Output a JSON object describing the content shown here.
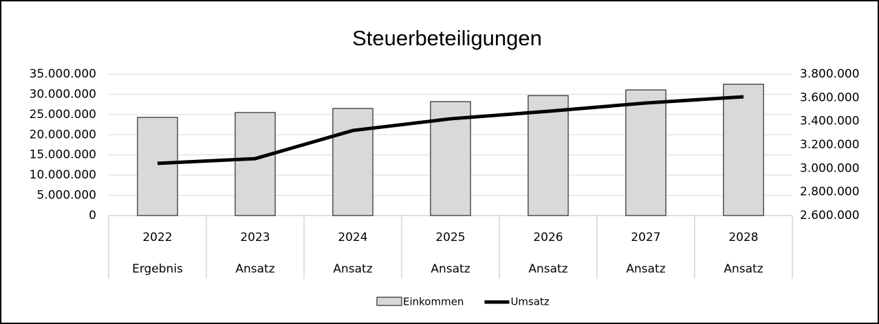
{
  "chart_data": {
    "type": "bar-line",
    "title": "Steuerbeteiligungen",
    "categories": [
      "2022",
      "2023",
      "2024",
      "2025",
      "2026",
      "2027",
      "2028"
    ],
    "sub_categories": [
      "Ergebnis",
      "Ansatz",
      "Ansatz",
      "Ansatz",
      "Ansatz",
      "Ansatz",
      "Ansatz"
    ],
    "series": [
      {
        "name": "Einkommen",
        "type": "bar",
        "color": "#d9d9d9",
        "values": [
          24300000,
          25500000,
          26500000,
          28200000,
          29700000,
          31100000,
          32500000
        ]
      },
      {
        "name": "Umsatz",
        "type": "line",
        "axis": "y2",
        "color": "#000000",
        "values": [
          3043000,
          3083000,
          3322000,
          3421000,
          3485000,
          3555000,
          3608000
        ]
      }
    ],
    "ylim": [
      0,
      35000000
    ],
    "yticks": [
      0,
      {
        "value": 5000000,
        "label": "5.000.000"
      },
      {
        "value": 10000000,
        "label": "10.000.000"
      },
      {
        "value": 15000000,
        "label": "15.000.000"
      },
      {
        "value": 20000000,
        "label": "20.000.000"
      },
      {
        "value": 25000000,
        "label": "25.000.000"
      },
      {
        "value": 30000000,
        "label": "30.000.000"
      },
      {
        "value": 35000000,
        "label": "35.000.000"
      }
    ],
    "y2lim": [
      2600000,
      3800000
    ],
    "y2ticks": [
      {
        "value": 2600000,
        "label": "2.600.000"
      },
      {
        "value": 2800000,
        "label": "2.800.000"
      },
      {
        "value": 3000000,
        "label": "3.000.000"
      },
      {
        "value": 3200000,
        "label": "3.200.000"
      },
      {
        "value": 3400000,
        "label": "3.400.000"
      },
      {
        "value": 3600000,
        "label": "3.600.000"
      },
      {
        "value": 3800000,
        "label": "3.800.000"
      }
    ],
    "grid": true,
    "legend": "bottom"
  }
}
